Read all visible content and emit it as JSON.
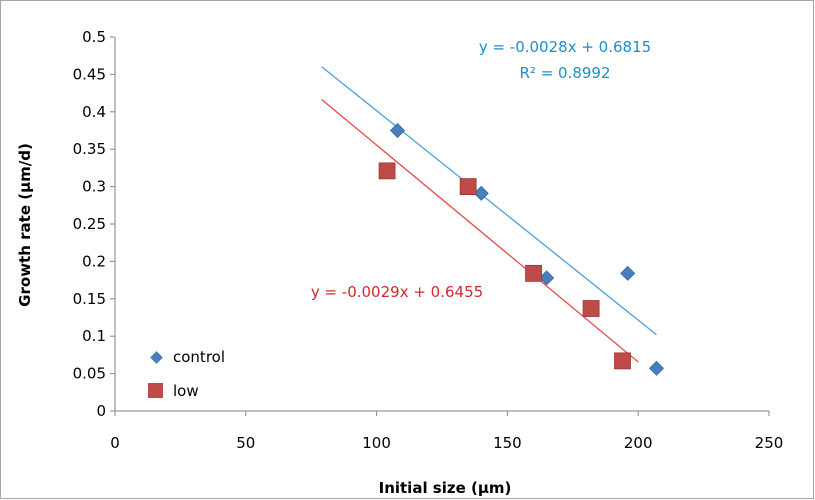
{
  "chart_data": {
    "type": "scatter",
    "title": "",
    "xlabel": "Initial size (µm)",
    "ylabel": "Growth rate (µm/d)",
    "xlim": [
      0,
      250
    ],
    "ylim": [
      0,
      0.5
    ],
    "x_ticks": [
      0,
      50,
      100,
      150,
      200,
      250
    ],
    "y_ticks": [
      0,
      0.05,
      0.1,
      0.15,
      0.2,
      0.25,
      0.3,
      0.35,
      0.4,
      0.45,
      0.5
    ],
    "x_tick_labels": [
      "0",
      "50",
      "100",
      "150",
      "200",
      "250"
    ],
    "y_tick_labels": [
      "0",
      "0.05",
      "0.1",
      "0.15",
      "0.2",
      "0.25",
      "0.3",
      "0.35",
      "0.4",
      "0.45",
      "0.5"
    ],
    "grid": false,
    "legend_position": "bottom-left",
    "series": [
      {
        "name": "control",
        "marker": "diamond",
        "color": "#4a7ebb",
        "points": [
          {
            "x": 108,
            "y": 0.375
          },
          {
            "x": 140,
            "y": 0.291
          },
          {
            "x": 165,
            "y": 0.178
          },
          {
            "x": 196,
            "y": 0.184
          },
          {
            "x": 207,
            "y": 0.057
          }
        ],
        "trendline": {
          "color": "#4aa3d8",
          "slope": -0.0028,
          "intercept": 0.6815,
          "x_range": [
            79,
            207
          ],
          "equation": "y = -0.0028x + 0.6815",
          "r_squared": "R² = 0.8992"
        }
      },
      {
        "name": "low",
        "marker": "square",
        "color": "#be4b48",
        "points": [
          {
            "x": 104,
            "y": 0.321
          },
          {
            "x": 135,
            "y": 0.3
          },
          {
            "x": 160,
            "y": 0.184
          },
          {
            "x": 182,
            "y": 0.137
          },
          {
            "x": 194,
            "y": 0.067
          }
        ],
        "trendline": {
          "color": "#e8494a",
          "slope": -0.0029,
          "intercept": 0.6455,
          "x_range": [
            79,
            200
          ],
          "equation": "y = -0.0029x + 0.6455"
        }
      }
    ]
  },
  "colors": {
    "control_equation": "#1e8fc9",
    "low_equation": "#d12a2a",
    "axis": "#868686",
    "frame": "#a6a6a6"
  }
}
